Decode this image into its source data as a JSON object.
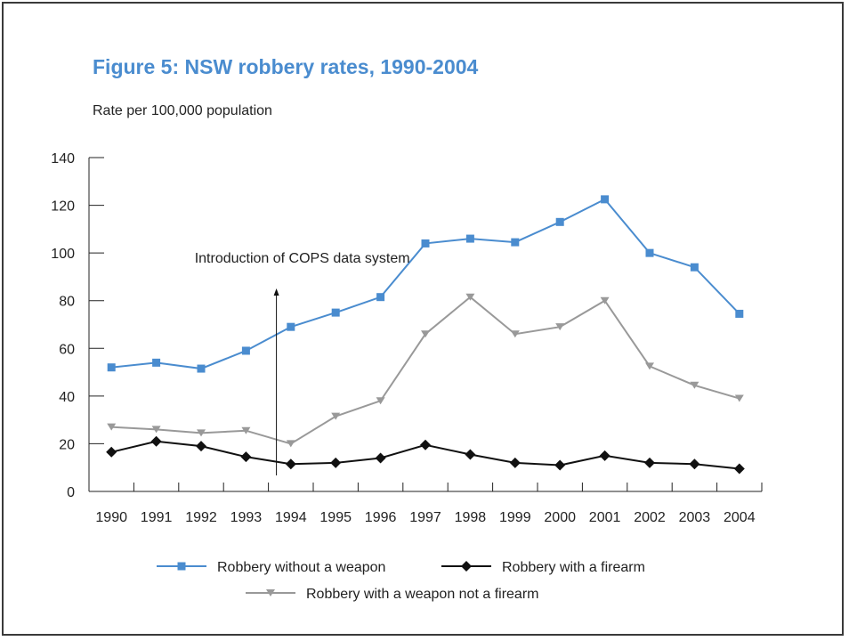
{
  "page": {
    "title": "Figure 5: NSW robbery rates, 1990-2004"
  },
  "colors": {
    "title": "#4a8ccf",
    "axis": "#222222",
    "border": "#3a3a3a"
  },
  "chart_data": {
    "type": "line",
    "title": "Figure 5: NSW robbery rates, 1990-2004",
    "xlabel": "",
    "ylabel": "Rate per 100,000 population",
    "categories": [
      "1990",
      "1991",
      "1992",
      "1993",
      "1994",
      "1995",
      "1996",
      "1997",
      "1998",
      "1999",
      "2000",
      "2001",
      "2002",
      "2003",
      "2004"
    ],
    "ylim": [
      0,
      140
    ],
    "yticks": [
      0,
      20,
      40,
      60,
      80,
      100,
      120,
      140
    ],
    "grid": false,
    "legend_placement": "bottom",
    "series": [
      {
        "name": "Robbery without a weapon",
        "color": "#4a8ccf",
        "marker": "square",
        "values": [
          52,
          54,
          51.5,
          59,
          69,
          75,
          81.5,
          104,
          106,
          104.5,
          113,
          122.5,
          100,
          94,
          74.5
        ]
      },
      {
        "name": "Robbery with a firearm",
        "color": "#111111",
        "marker": "diamond",
        "values": [
          16.5,
          21,
          19,
          14.5,
          11.5,
          12,
          14,
          19.5,
          15.5,
          12,
          11,
          15,
          12,
          11.5,
          9.5
        ]
      },
      {
        "name": "Robbery with a weapon not a firearm",
        "color": "#999999",
        "marker": "triangle-down",
        "values": [
          27,
          26,
          24.5,
          25.5,
          20,
          31.5,
          38,
          66,
          81.5,
          66,
          69,
          80,
          52.5,
          44.5,
          39
        ]
      }
    ],
    "annotations": [
      {
        "text": "Introduction of COPS data system",
        "category": "1994",
        "y": 87
      }
    ]
  }
}
